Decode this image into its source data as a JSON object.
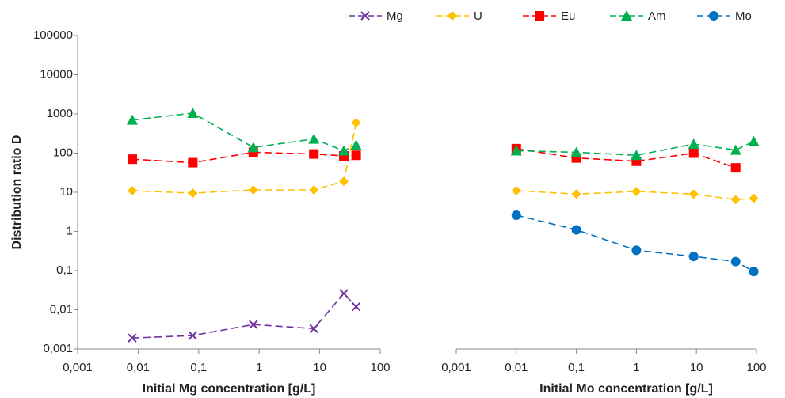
{
  "chart_data": [
    {
      "type": "line",
      "xscale": "log",
      "yscale": "log",
      "x_label": "Initial Mg concentration [g/L]",
      "y_label": "Distribution ratio D",
      "x": [
        0.008,
        0.08,
        0.8,
        8,
        25,
        40
      ],
      "xlim": [
        0.001,
        100
      ],
      "xticks": [
        {
          "value": 0.001,
          "label": "0,001"
        },
        {
          "value": 0.01,
          "label": "0,01"
        },
        {
          "value": 0.1,
          "label": "0,1"
        },
        1,
        10,
        100
      ],
      "ylim": [
        0.001,
        100000
      ],
      "yticks": [
        100000,
        10000,
        1000,
        100,
        10,
        1,
        {
          "value": 0.1,
          "label": "0,1"
        },
        {
          "value": 0.01,
          "label": "0,01"
        },
        {
          "value": 0.001,
          "label": "0,001"
        }
      ],
      "series": [
        {
          "name": "Mg",
          "color": "#7030a0",
          "marker": "x",
          "values": [
            0.0019,
            0.0022,
            0.0042,
            0.0033,
            0.026,
            0.012
          ]
        },
        {
          "name": "U",
          "color": "#ffc000",
          "marker": "diamond",
          "values": [
            11,
            9.5,
            11.5,
            11.5,
            19,
            600
          ]
        },
        {
          "name": "Eu",
          "color": "#ff0000",
          "marker": "square",
          "values": [
            70,
            57,
            105,
            95,
            85,
            88
          ]
        },
        {
          "name": "Am",
          "color": "#00b050",
          "marker": "triangle",
          "values": [
            700,
            1050,
            140,
            230,
            115,
            160
          ]
        }
      ]
    },
    {
      "type": "line",
      "xscale": "log",
      "yscale": "log",
      "x_label": "Initial Mo concentration [g/L]",
      "x": [
        0.01,
        0.1,
        1,
        9,
        45,
        90
      ],
      "xlim": [
        0.001,
        100
      ],
      "xticks": [
        {
          "value": 0.001,
          "label": "0,001"
        },
        {
          "value": 0.01,
          "label": "0,01"
        },
        {
          "value": 0.1,
          "label": "0,1"
        },
        1,
        10,
        100
      ],
      "ylim": [
        0.001,
        100000
      ],
      "series": [
        {
          "name": "U",
          "color": "#ffc000",
          "marker": "diamond",
          "values": [
            11,
            9,
            10.5,
            9,
            6.5,
            7
          ]
        },
        {
          "name": "Eu",
          "color": "#ff0000",
          "marker": "square",
          "values": [
            130,
            75,
            62,
            100,
            42,
            null
          ]
        },
        {
          "name": "Am",
          "color": "#00b050",
          "marker": "triangle",
          "values": [
            115,
            105,
            88,
            170,
            120,
            200
          ]
        },
        {
          "name": "Mo",
          "color": "#0070c0",
          "marker": "circle",
          "values": [
            2.6,
            1.1,
            0.33,
            0.23,
            0.17,
            0.095
          ]
        }
      ]
    }
  ]
}
